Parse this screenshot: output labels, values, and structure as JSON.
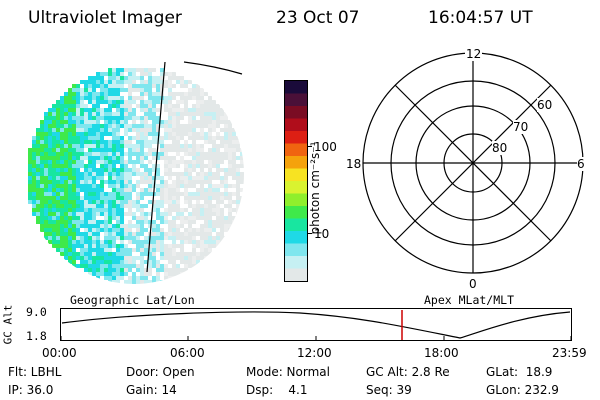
{
  "header": {
    "title": "Ultraviolet Imager",
    "date": "23 Oct 07",
    "time": "16:04:57 UT"
  },
  "colorbar": {
    "label": "photon cm⁻²s⁻¹",
    "ticks": [
      "100",
      "10"
    ],
    "colors": [
      "#1a0b3a",
      "#4a1038",
      "#7a0c23",
      "#b00d1b",
      "#dd1f14",
      "#f06410",
      "#f5a20c",
      "#f7e322",
      "#d9f330",
      "#8fef2c",
      "#3fe94a",
      "#18e6a0",
      "#1fd9e6",
      "#7fe6ee",
      "#c6f0f3",
      "#e3e8e8"
    ]
  },
  "polar_grid": {
    "mlt_labels": {
      "top": "12",
      "left": "18",
      "right": "6",
      "bottom": "0"
    },
    "lat_labels": [
      "60",
      "70",
      "80"
    ]
  },
  "timeline": {
    "left_label": "Geographic Lat/Lon",
    "right_label": "Apex MLat/MLT",
    "axis_title": "GC Alt",
    "y_ticks": [
      "9.0",
      "1.8"
    ],
    "x_ticks": [
      "00:00",
      "06:00",
      "12:00",
      "18:00",
      "23:59"
    ],
    "marker_color": "#cc0000"
  },
  "status": {
    "flt": "Flt: LBHL",
    "ip": "IP: 36.0",
    "door": "Door: Open",
    "gain": "Gain: 14",
    "mode": "Mode: Normal",
    "dsp": "Dsp:    4.1",
    "gcalt": "GC Alt: 2.8 Re",
    "seq": "Seq: 39",
    "glat": "GLat:  18.9",
    "glon": "GLon: 232.9"
  }
}
